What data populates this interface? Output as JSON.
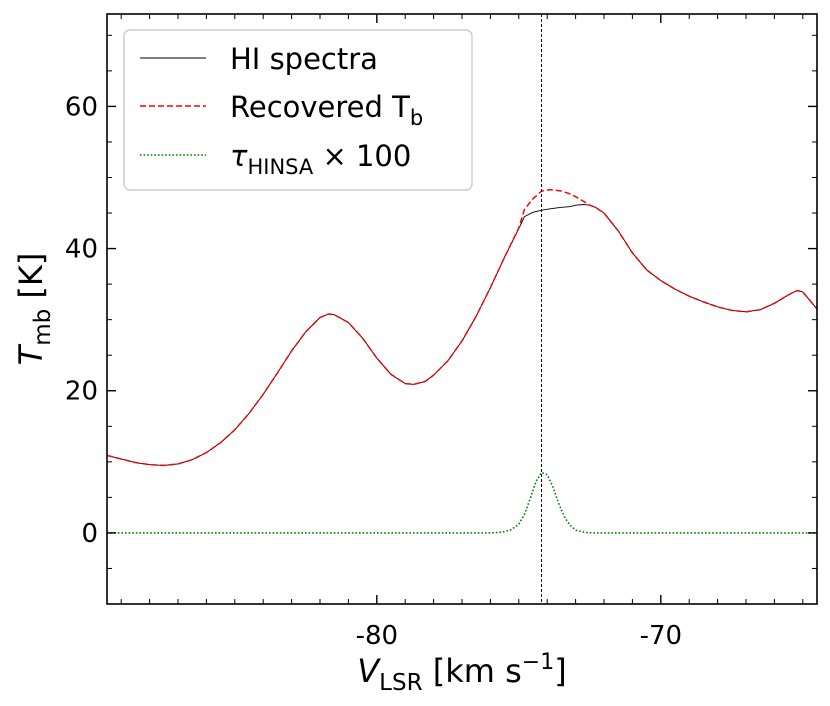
{
  "chart_data": {
    "type": "line",
    "xlabel": {
      "main": "V",
      "sub": "LSR",
      "unit_open": " [km s",
      "sup": "−1",
      "unit_close": "]"
    },
    "ylabel": {
      "main": "T",
      "sub": "mb",
      "unit": " [K]"
    },
    "xlim": [
      -89.5,
      -64.5
    ],
    "ylim": [
      -10,
      73
    ],
    "xticks": [
      -80,
      -70
    ],
    "xtick_labels": [
      "-80",
      "-70"
    ],
    "yticks": [
      0,
      20,
      40,
      60
    ],
    "ytick_labels": [
      "0",
      "20",
      "40",
      "60"
    ],
    "x_minor_step": 1,
    "y_minor_step": 5,
    "grid": false,
    "legend_position": "upper-left",
    "vline_x": -74.2,
    "series": [
      {
        "name": "HI spectra",
        "color": "#000000",
        "style": "solid",
        "points": [
          [
            -89.5,
            10.9
          ],
          [
            -89,
            10.4
          ],
          [
            -88.5,
            9.9
          ],
          [
            -88,
            9.6
          ],
          [
            -87.5,
            9.5
          ],
          [
            -87,
            9.7
          ],
          [
            -86.5,
            10.3
          ],
          [
            -86,
            11.3
          ],
          [
            -85.5,
            12.7
          ],
          [
            -85,
            14.5
          ],
          [
            -84.5,
            16.8
          ],
          [
            -84,
            19.5
          ],
          [
            -83.5,
            22.5
          ],
          [
            -83,
            25.6
          ],
          [
            -82.5,
            28.3
          ],
          [
            -82,
            30.3
          ],
          [
            -81.7,
            30.8
          ],
          [
            -81.5,
            30.7
          ],
          [
            -81,
            29.6
          ],
          [
            -80.5,
            27.4
          ],
          [
            -80,
            24.6
          ],
          [
            -79.5,
            22.3
          ],
          [
            -79,
            21.0
          ],
          [
            -78.7,
            20.9
          ],
          [
            -78.3,
            21.3
          ],
          [
            -78,
            22.2
          ],
          [
            -77.5,
            24.2
          ],
          [
            -77,
            27.0
          ],
          [
            -76.5,
            30.5
          ],
          [
            -76,
            34.5
          ],
          [
            -75.5,
            38.8
          ],
          [
            -75,
            42.8
          ],
          [
            -74.8,
            44.5
          ],
          [
            -74.5,
            45.1
          ],
          [
            -74.2,
            45.4
          ],
          [
            -73.9,
            45.6
          ],
          [
            -73.5,
            45.8
          ],
          [
            -73.2,
            45.9
          ],
          [
            -73,
            46.1
          ],
          [
            -72.7,
            46.2
          ],
          [
            -72.5,
            46.1
          ],
          [
            -72.3,
            45.8
          ],
          [
            -72,
            45.0
          ],
          [
            -71.5,
            42.5
          ],
          [
            -71,
            39.4
          ],
          [
            -70.5,
            37.0
          ],
          [
            -70,
            35.5
          ],
          [
            -69.5,
            34.3
          ],
          [
            -69,
            33.3
          ],
          [
            -68.5,
            32.5
          ],
          [
            -68,
            31.8
          ],
          [
            -67.5,
            31.3
          ],
          [
            -67,
            31.1
          ],
          [
            -66.5,
            31.4
          ],
          [
            -66,
            32.3
          ],
          [
            -65.5,
            33.5
          ],
          [
            -65.2,
            34.1
          ],
          [
            -65,
            33.9
          ],
          [
            -64.5,
            31.5
          ]
        ]
      },
      {
        "name": "Recovered T",
        "name_sub": "b",
        "color": "#ff0000",
        "style": "dashed",
        "points": [
          [
            -89.5,
            10.9
          ],
          [
            -89,
            10.4
          ],
          [
            -88.5,
            9.9
          ],
          [
            -88,
            9.6
          ],
          [
            -87.5,
            9.5
          ],
          [
            -87,
            9.7
          ],
          [
            -86.5,
            10.3
          ],
          [
            -86,
            11.3
          ],
          [
            -85.5,
            12.7
          ],
          [
            -85,
            14.5
          ],
          [
            -84.5,
            16.8
          ],
          [
            -84,
            19.5
          ],
          [
            -83.5,
            22.5
          ],
          [
            -83,
            25.6
          ],
          [
            -82.5,
            28.3
          ],
          [
            -82,
            30.3
          ],
          [
            -81.7,
            30.8
          ],
          [
            -81.5,
            30.7
          ],
          [
            -81,
            29.6
          ],
          [
            -80.5,
            27.4
          ],
          [
            -80,
            24.6
          ],
          [
            -79.5,
            22.3
          ],
          [
            -79,
            21.0
          ],
          [
            -78.7,
            20.9
          ],
          [
            -78.3,
            21.3
          ],
          [
            -78,
            22.2
          ],
          [
            -77.5,
            24.2
          ],
          [
            -77,
            27.0
          ],
          [
            -76.5,
            30.5
          ],
          [
            -76,
            34.5
          ],
          [
            -75.5,
            38.8
          ],
          [
            -75,
            42.9
          ],
          [
            -74.8,
            45.5
          ],
          [
            -74.5,
            47.0
          ],
          [
            -74.2,
            48.1
          ],
          [
            -73.9,
            48.3
          ],
          [
            -73.5,
            48.1
          ],
          [
            -73.2,
            47.7
          ],
          [
            -73,
            47.3
          ],
          [
            -72.7,
            46.6
          ],
          [
            -72.5,
            46.1
          ],
          [
            -72.3,
            45.8
          ],
          [
            -72,
            45.0
          ],
          [
            -71.5,
            42.5
          ],
          [
            -71,
            39.4
          ],
          [
            -70.5,
            37.0
          ],
          [
            -70,
            35.5
          ],
          [
            -69.5,
            34.3
          ],
          [
            -69,
            33.3
          ],
          [
            -68.5,
            32.5
          ],
          [
            -68,
            31.8
          ],
          [
            -67.5,
            31.3
          ],
          [
            -67,
            31.1
          ],
          [
            -66.5,
            31.4
          ],
          [
            -66,
            32.3
          ],
          [
            -65.5,
            33.5
          ],
          [
            -65.2,
            34.1
          ],
          [
            -65,
            33.9
          ],
          [
            -64.5,
            31.5
          ]
        ]
      },
      {
        "name": "τ",
        "name_sub": "HINSA",
        "name_suffix": " × 100",
        "color": "#008000",
        "style": "dotted",
        "points": [
          [
            -89.5,
            0
          ],
          [
            -76,
            0
          ],
          [
            -75.6,
            0.1
          ],
          [
            -75.3,
            0.4
          ],
          [
            -75,
            1.2
          ],
          [
            -74.8,
            2.6
          ],
          [
            -74.6,
            4.8
          ],
          [
            -74.4,
            7.2
          ],
          [
            -74.2,
            8.5
          ],
          [
            -74,
            8.2
          ],
          [
            -73.8,
            6.5
          ],
          [
            -73.6,
            4.2
          ],
          [
            -73.4,
            2.3
          ],
          [
            -73.2,
            1.1
          ],
          [
            -73,
            0.4
          ],
          [
            -72.7,
            0.1
          ],
          [
            -72.4,
            0
          ],
          [
            -64.5,
            0
          ]
        ]
      }
    ]
  }
}
